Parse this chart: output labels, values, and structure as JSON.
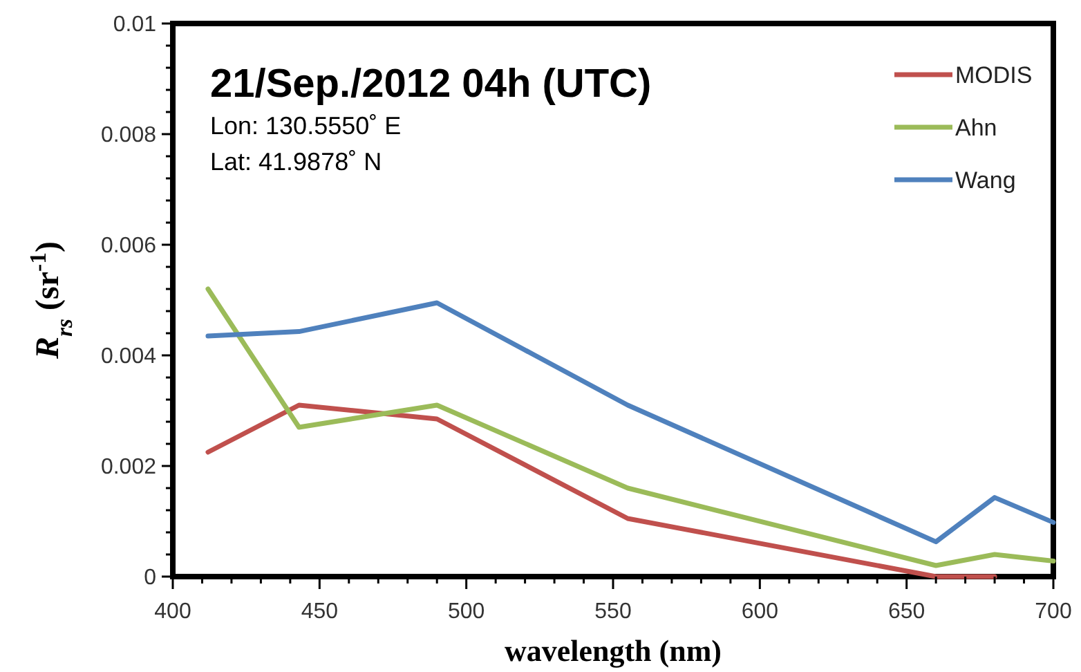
{
  "chart_data": {
    "type": "line",
    "title": "21/Sep./2012 04h (UTC)",
    "xlabel": "wavelength (nm)",
    "ylabel": "R$_{rs}$ (sr$^{-1}$)",
    "annotations": [
      "Lon: 130.5550˚ E",
      "Lat: 41.9878˚ N"
    ],
    "legend": "top right",
    "grid": false,
    "marker": "none",
    "line_style": "solid",
    "xlim": [
      400,
      700
    ],
    "xticks": [
      400,
      450,
      500,
      550,
      600,
      650,
      700,
      {
        "value": 410,
        "label": null
      },
      {
        "value": 420,
        "label": null
      },
      {
        "value": 430,
        "label": null
      },
      {
        "value": 440,
        "label": null
      },
      {
        "value": 460,
        "label": null
      },
      {
        "value": 470,
        "label": null
      },
      {
        "value": 480,
        "label": null
      },
      {
        "value": 490,
        "label": null
      },
      {
        "value": 510,
        "label": null
      },
      {
        "value": 520,
        "label": null
      },
      {
        "value": 530,
        "label": null
      },
      {
        "value": 540,
        "label": null
      },
      {
        "value": 560,
        "label": null
      },
      {
        "value": 570,
        "label": null
      },
      {
        "value": 580,
        "label": null
      },
      {
        "value": 590,
        "label": null
      },
      {
        "value": 610,
        "label": null
      },
      {
        "value": 620,
        "label": null
      },
      {
        "value": 630,
        "label": null
      },
      {
        "value": 640,
        "label": null
      },
      {
        "value": 660,
        "label": null
      },
      {
        "value": 670,
        "label": null
      },
      {
        "value": 680,
        "label": null
      },
      {
        "value": 690,
        "label": null
      }
    ],
    "ylim": [
      0,
      0.01
    ],
    "yticks": [
      0,
      0.002,
      0.004,
      0.006,
      0.008,
      0.01,
      {
        "value": 0.0004,
        "label": null
      },
      {
        "value": 0.0008,
        "label": null
      },
      {
        "value": 0.0012,
        "label": null
      },
      {
        "value": 0.0016,
        "label": null
      },
      {
        "value": 0.0024,
        "label": null
      },
      {
        "value": 0.0028,
        "label": null
      },
      {
        "value": 0.0032,
        "label": null
      },
      {
        "value": 0.0036,
        "label": null
      },
      {
        "value": 0.0044,
        "label": null
      },
      {
        "value": 0.0048,
        "label": null
      },
      {
        "value": 0.0052,
        "label": null
      },
      {
        "value": 0.0056,
        "label": null
      },
      {
        "value": 0.0064,
        "label": null
      },
      {
        "value": 0.0068,
        "label": null
      },
      {
        "value": 0.0072,
        "label": null
      },
      {
        "value": 0.0076,
        "label": null
      },
      {
        "value": 0.0084,
        "label": null
      },
      {
        "value": 0.0088,
        "label": null
      },
      {
        "value": 0.0092,
        "label": null
      },
      {
        "value": 0.0096,
        "label": null
      }
    ],
    "series": [
      {
        "name": "MODIS",
        "color": "#c0504d",
        "x": [
          412,
          443,
          490,
          555,
          660,
          680
        ],
        "values": [
          0.00225,
          0.0031,
          0.00285,
          0.00105,
          0.0,
          0.0
        ]
      },
      {
        "name": "Ahn",
        "color": "#9bbb59",
        "x": [
          412,
          443,
          490,
          555,
          660,
          680,
          700
        ],
        "values": [
          0.0052,
          0.0027,
          0.0031,
          0.0016,
          0.0002,
          0.0004,
          0.00028
        ]
      },
      {
        "name": "Wang",
        "color": "#4f81bd",
        "x": [
          412,
          443,
          490,
          555,
          660,
          680,
          700
        ],
        "values": [
          0.00435,
          0.00443,
          0.00495,
          0.0031,
          0.00063,
          0.00143,
          0.00098
        ]
      }
    ]
  }
}
